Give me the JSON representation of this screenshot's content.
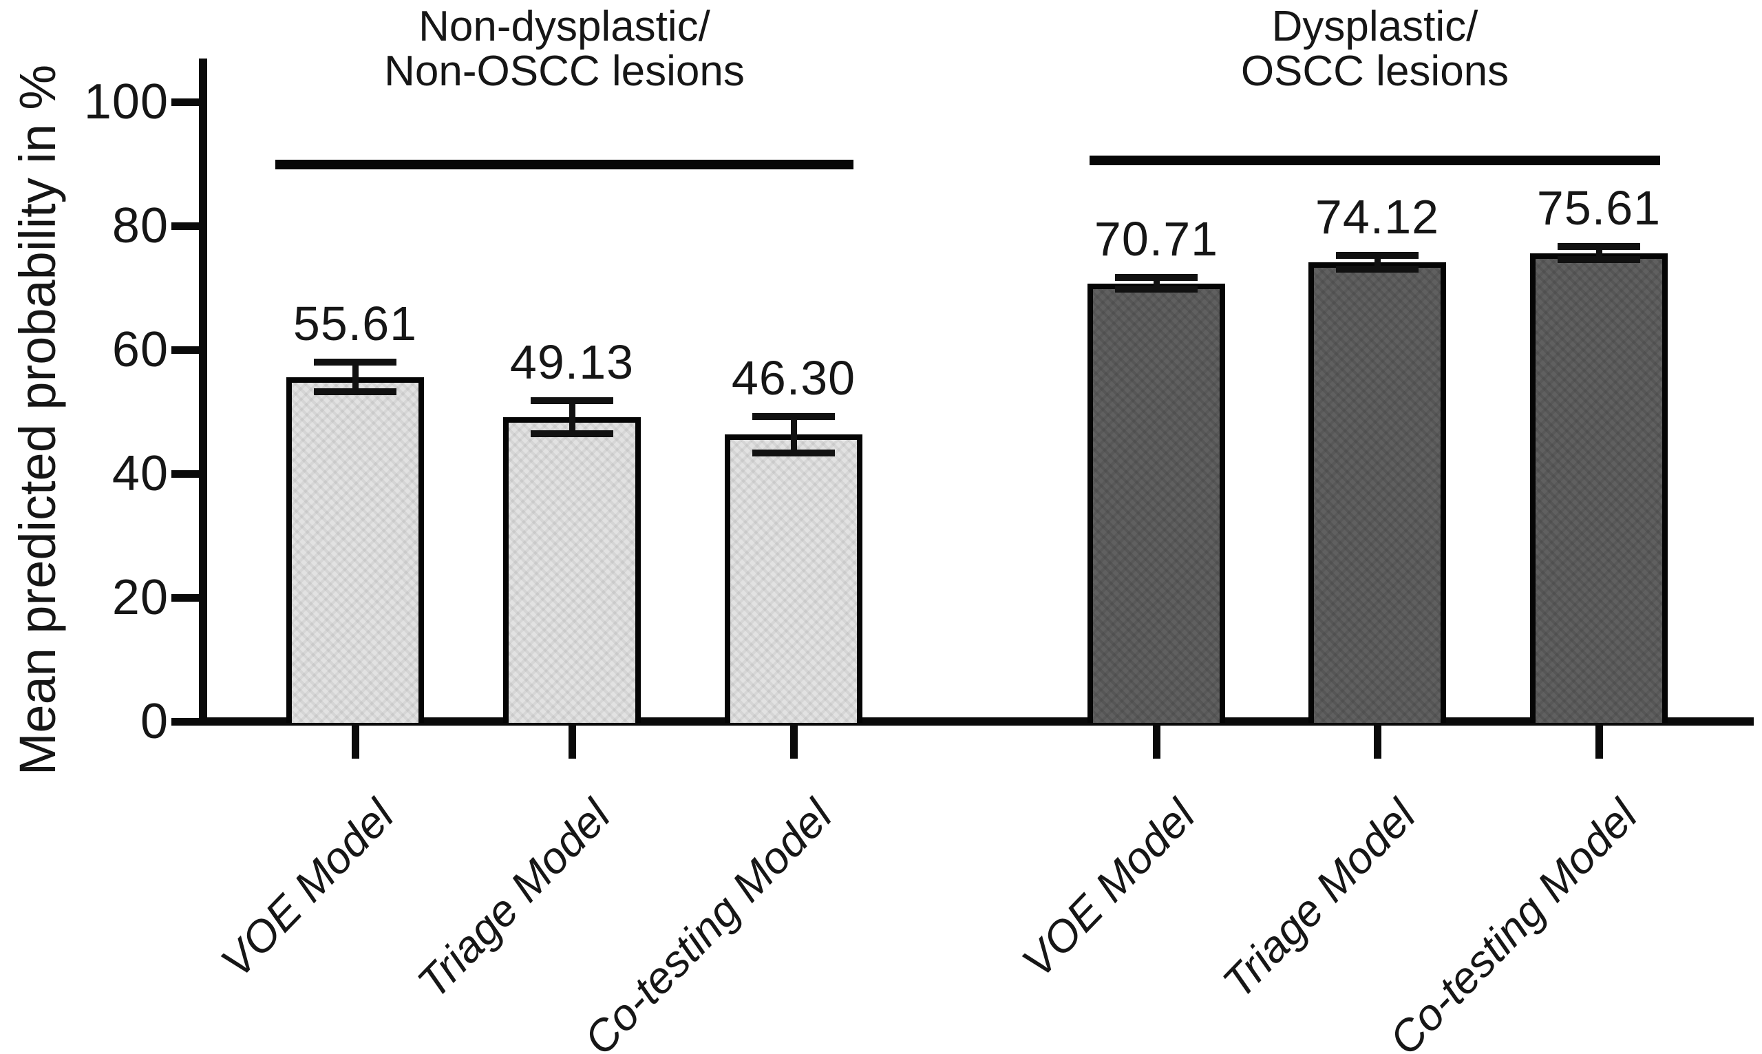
{
  "chart_data": {
    "type": "bar",
    "title": "",
    "ylabel": "Mean predicted probability in %",
    "xlabel": "",
    "ylim": [
      0,
      100
    ],
    "yticks": [
      0,
      20,
      40,
      60,
      80,
      100
    ],
    "grid": false,
    "legend_position": "none",
    "error_bars": true,
    "categories": [
      "VOE Model",
      "Triage Model",
      "Co-testing Model"
    ],
    "groups": [
      {
        "title_lines": [
          "Non-dysplastic/",
          "Non-OSCC lesions"
        ],
        "style": "light",
        "fill": "#e2e2e2",
        "bars": [
          {
            "category": "VOE Model",
            "value": 55.61,
            "value_label": "55.61",
            "error": 2.9
          },
          {
            "category": "Triage Model",
            "value": 49.13,
            "value_label": "49.13",
            "error": 3.2
          },
          {
            "category": "Co-testing Model",
            "value": 46.3,
            "value_label": "46.30",
            "error": 3.5
          }
        ]
      },
      {
        "title_lines": [
          "Dysplastic/",
          "OSCC lesions"
        ],
        "style": "dark",
        "fill": "#606060",
        "bars": [
          {
            "category": "VOE Model",
            "value": 70.71,
            "value_label": "70.71",
            "error": 1.5
          },
          {
            "category": "Triage Model",
            "value": 74.12,
            "value_label": "74.12",
            "error": 1.7
          },
          {
            "category": "Co-testing Model",
            "value": 75.61,
            "value_label": "75.61",
            "error": 1.6
          }
        ]
      }
    ],
    "colors": {
      "axis": "#0a0a0a",
      "text": "#161616",
      "bar_border": "#050505",
      "light_bar_fill": "#e2e2e2",
      "dark_bar_fill": "#606060",
      "background": "#ffffff"
    }
  }
}
